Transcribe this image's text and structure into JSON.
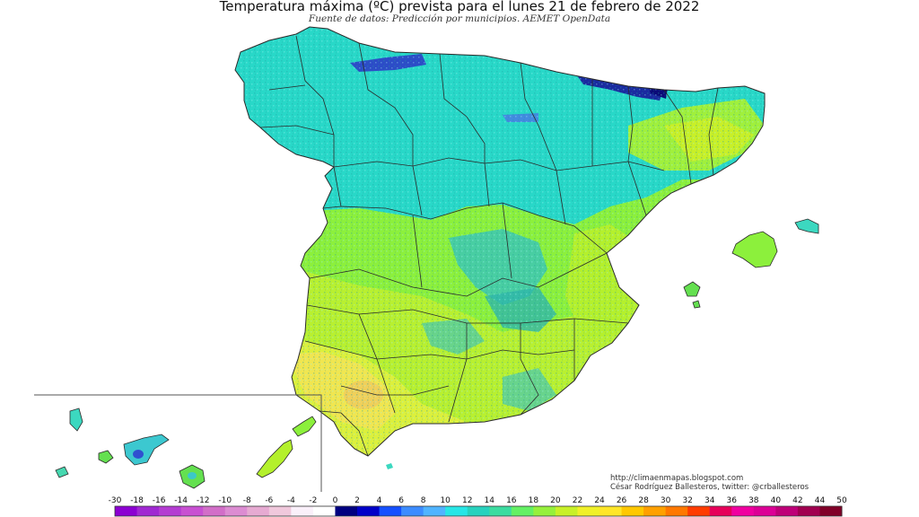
{
  "map": {
    "title": "Temperatura máxima (ºC) prevista para el lunes 21 de febrero de 2022",
    "subtitle": "Fuente de datos: Predicción por municipios. AEMET OpenData",
    "credit_url": "http://climaenmapas.blogspot.com",
    "credit_author": "César Rodríguez Ballesteros, twitter: @crballesteros",
    "colors": {
      "sea": "#ffffff",
      "border": "#2a2a2a",
      "cyan": "#28d8c8",
      "teal": "#3cb8b0",
      "green": "#8cf03c",
      "lime": "#c8f028",
      "yellow": "#f0f03c",
      "gold": "#f0dc50",
      "navy": "#1a1aa0"
    }
  },
  "legend": {
    "ticks": [
      "-30",
      "-18",
      "-16",
      "-14",
      "-12",
      "-10",
      "-8",
      "-6",
      "-4",
      "-2",
      "0",
      "2",
      "4",
      "6",
      "8",
      "10",
      "12",
      "14",
      "16",
      "18",
      "20",
      "22",
      "24",
      "26",
      "28",
      "30",
      "32",
      "34",
      "36",
      "38",
      "40",
      "42",
      "44",
      "50"
    ],
    "colors": [
      "#8c00d2",
      "#a028d2",
      "#b43cd2",
      "#c850d2",
      "#d26ec8",
      "#dc8cd2",
      "#e6aad2",
      "#f0c8dc",
      "#faf0fa",
      "#ffffff",
      "#000080",
      "#0000c8",
      "#1450ff",
      "#3c8cff",
      "#50b4ff",
      "#28e6e6",
      "#28d2be",
      "#3cdca0",
      "#64f064",
      "#96f03c",
      "#c8f028",
      "#f0f028",
      "#ffe628",
      "#ffc800",
      "#ffa000",
      "#ff7800",
      "#ff3c00",
      "#e6005a",
      "#f000a0",
      "#dc0096",
      "#be0078",
      "#a00050",
      "#800028"
    ]
  }
}
